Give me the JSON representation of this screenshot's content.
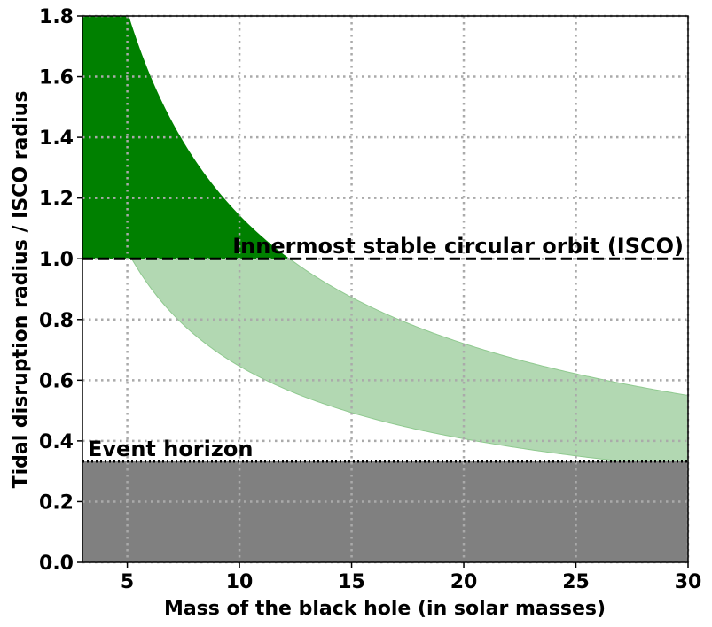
{
  "chart_data": {
    "type": "area",
    "title": "",
    "xlabel": "Mass of the black hole (in solar masses)",
    "ylabel": "Tidal disruption radius / ISCO radius",
    "xlim": [
      3,
      30
    ],
    "ylim": [
      0,
      1.8
    ],
    "xticks": [
      5,
      10,
      15,
      20,
      25,
      30
    ],
    "yticks": [
      0.0,
      0.2,
      0.4,
      0.6,
      0.8,
      1.0,
      1.2,
      1.4,
      1.6,
      1.8
    ],
    "grid": true,
    "annotations": {
      "isco_label": "Innermost stable circular orbit (ISCO)",
      "event_horizon_label": "Event horizon"
    },
    "reference_lines": [
      {
        "name": "isco",
        "y": 1.0,
        "style": "dashed",
        "color": "#000000"
      },
      {
        "name": "event-horizon",
        "y": 0.3333,
        "style": "dotted",
        "color": "#000000"
      }
    ],
    "event_horizon_region": {
      "y_min": 0,
      "y_max": 0.3333,
      "color": "#808080"
    },
    "band": {
      "upper_coefficient": 5.31,
      "lower_coefficient": 3.0,
      "decay_exponent": -0.6667,
      "colors": {
        "above_isco": "#008000",
        "below_isco": "#b2d8b2",
        "edge": "#8fc98f"
      }
    },
    "tick_label_format": {
      "x_decimals": 0,
      "y_decimals": 1
    }
  }
}
